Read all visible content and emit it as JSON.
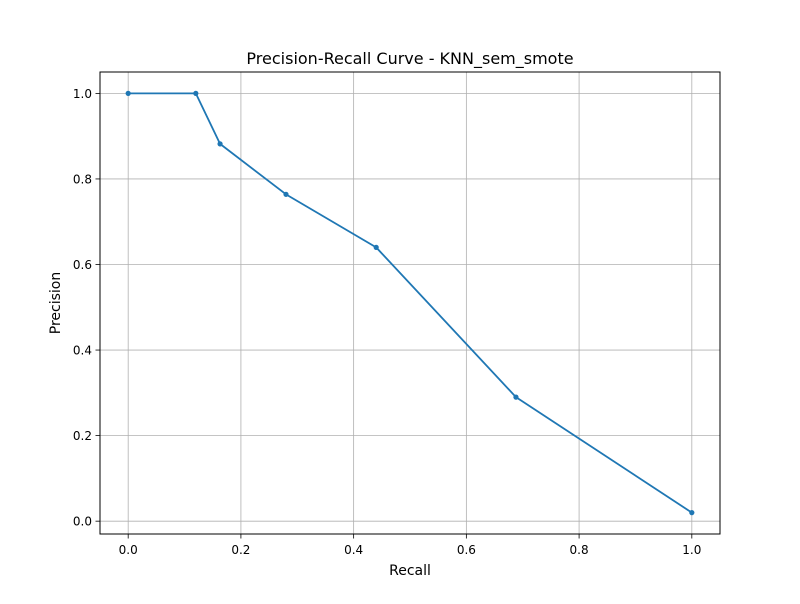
{
  "chart_data": {
    "type": "line",
    "title": "Precision-Recall Curve - KNN_sem_smote",
    "xlabel": "Recall",
    "ylabel": "Precision",
    "xlim": [
      -0.05,
      1.05
    ],
    "ylim": [
      -0.03,
      1.05
    ],
    "xticks": [
      0.0,
      0.2,
      0.4,
      0.6,
      0.8,
      1.0
    ],
    "yticks": [
      0.0,
      0.2,
      0.4,
      0.6,
      0.8,
      1.0
    ],
    "xtick_labels": [
      "0.0",
      "0.2",
      "0.4",
      "0.6",
      "0.8",
      "1.0"
    ],
    "ytick_labels": [
      "0.0",
      "0.2",
      "0.4",
      "0.6",
      "0.8",
      "1.0"
    ],
    "grid": true,
    "series": [
      {
        "color": "#1f77b4",
        "marker": "dot",
        "x": [
          0.0,
          0.12,
          0.163,
          0.28,
          0.44,
          0.688,
          1.0
        ],
        "y": [
          1.0,
          1.0,
          0.882,
          0.764,
          0.64,
          0.29,
          0.02
        ]
      }
    ]
  }
}
